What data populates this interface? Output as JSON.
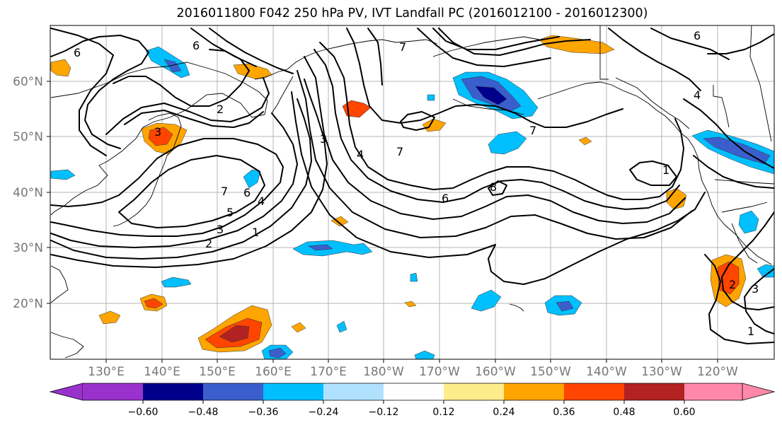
{
  "title": "2016011800 F042 250 hPa PV, IVT Landfall PC (2016012100 - 2016012300)",
  "lon_labels": [
    "130°E",
    "140°E",
    "150°E",
    "160°E",
    "170°E",
    "180°W",
    "170°W",
    "160°W",
    "150°W",
    "140°W",
    "130°W",
    "120°W"
  ],
  "lat_labels": [
    "60°N",
    "50°N",
    "40°N",
    "30°N",
    "20°N"
  ],
  "colorbar": {
    "tick_labels": [
      "−0.60",
      "−0.48",
      "−0.36",
      "−0.24",
      "−0.12",
      "0.12",
      "0.24",
      "0.36",
      "0.48",
      "0.60"
    ],
    "colors": [
      "#9932cc",
      "#00008b",
      "#3a5fcd",
      "#00bfff",
      "#b0e2ff",
      "#ffffff",
      "#ffec8b",
      "#ffa500",
      "#ff4500",
      "#b22222",
      "#ff88aa"
    ]
  },
  "contour_labels": [
    "6",
    "6",
    "2",
    "3",
    "4",
    "5",
    "6",
    "7",
    "1",
    "2",
    "3",
    "4",
    "7",
    "3",
    "6",
    "8",
    "7",
    "1",
    "4",
    "7",
    "6",
    "1",
    "2",
    "3"
  ]
}
